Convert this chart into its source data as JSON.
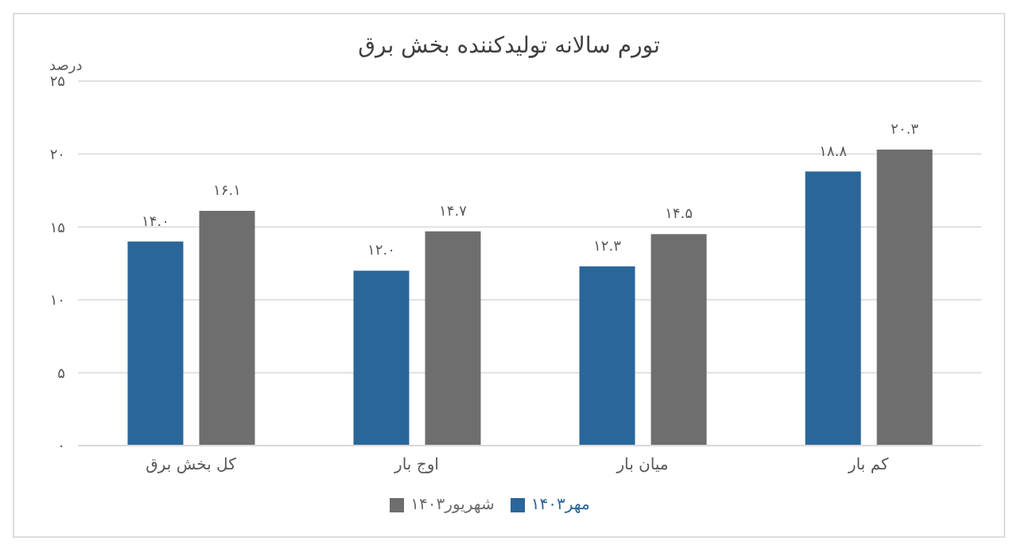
{
  "chart_data": {
    "type": "bar",
    "title": "تورم سالانه تولیدکننده بخش برق",
    "ylabel": "درصد",
    "categories": [
      "کل بخش برق",
      "اوج بار",
      "میان بار",
      "کم بار"
    ],
    "series": [
      {
        "name": "مهر۱۴۰۳",
        "color": "#2a6699",
        "values": [
          14.0,
          12.0,
          12.3,
          18.8
        ],
        "value_labels": [
          "۱۴.۰",
          "۱۲.۰",
          "۱۲.۳",
          "۱۸.۸"
        ]
      },
      {
        "name": "شهریور۱۴۰۳",
        "color": "#6e6e6e",
        "values": [
          16.1,
          14.7,
          14.5,
          20.3
        ],
        "value_labels": [
          "۱۶.۱",
          "۱۴.۷",
          "۱۴.۵",
          "۲۰.۳"
        ]
      }
    ],
    "ylim": [
      0,
      25
    ],
    "yticks": [
      {
        "value": 0,
        "label": "۰"
      },
      {
        "value": 5,
        "label": "۵"
      },
      {
        "value": 10,
        "label": "۱۰"
      },
      {
        "value": 15,
        "label": "۱۵"
      },
      {
        "value": 20,
        "label": "۲۰"
      },
      {
        "value": 25,
        "label": "۲۵"
      }
    ],
    "grid": "y",
    "legend": "bottom"
  }
}
